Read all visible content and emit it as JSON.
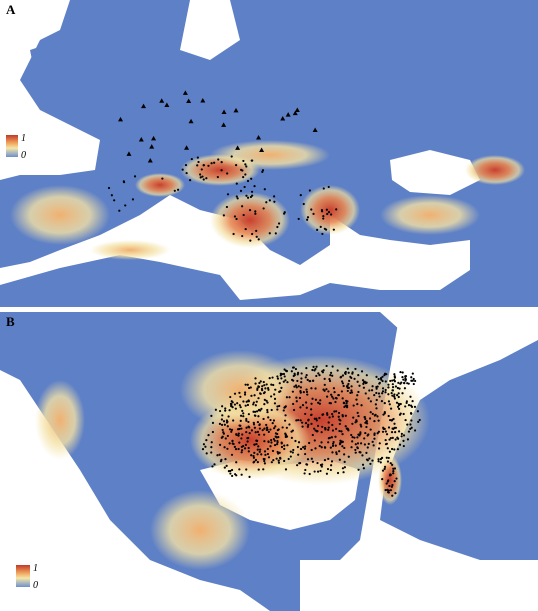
{
  "panels": [
    {
      "label": "A",
      "legend": {
        "max": "1",
        "min": "0"
      }
    },
    {
      "label": "B",
      "legend": {
        "max": "1",
        "min": "0"
      }
    }
  ]
}
